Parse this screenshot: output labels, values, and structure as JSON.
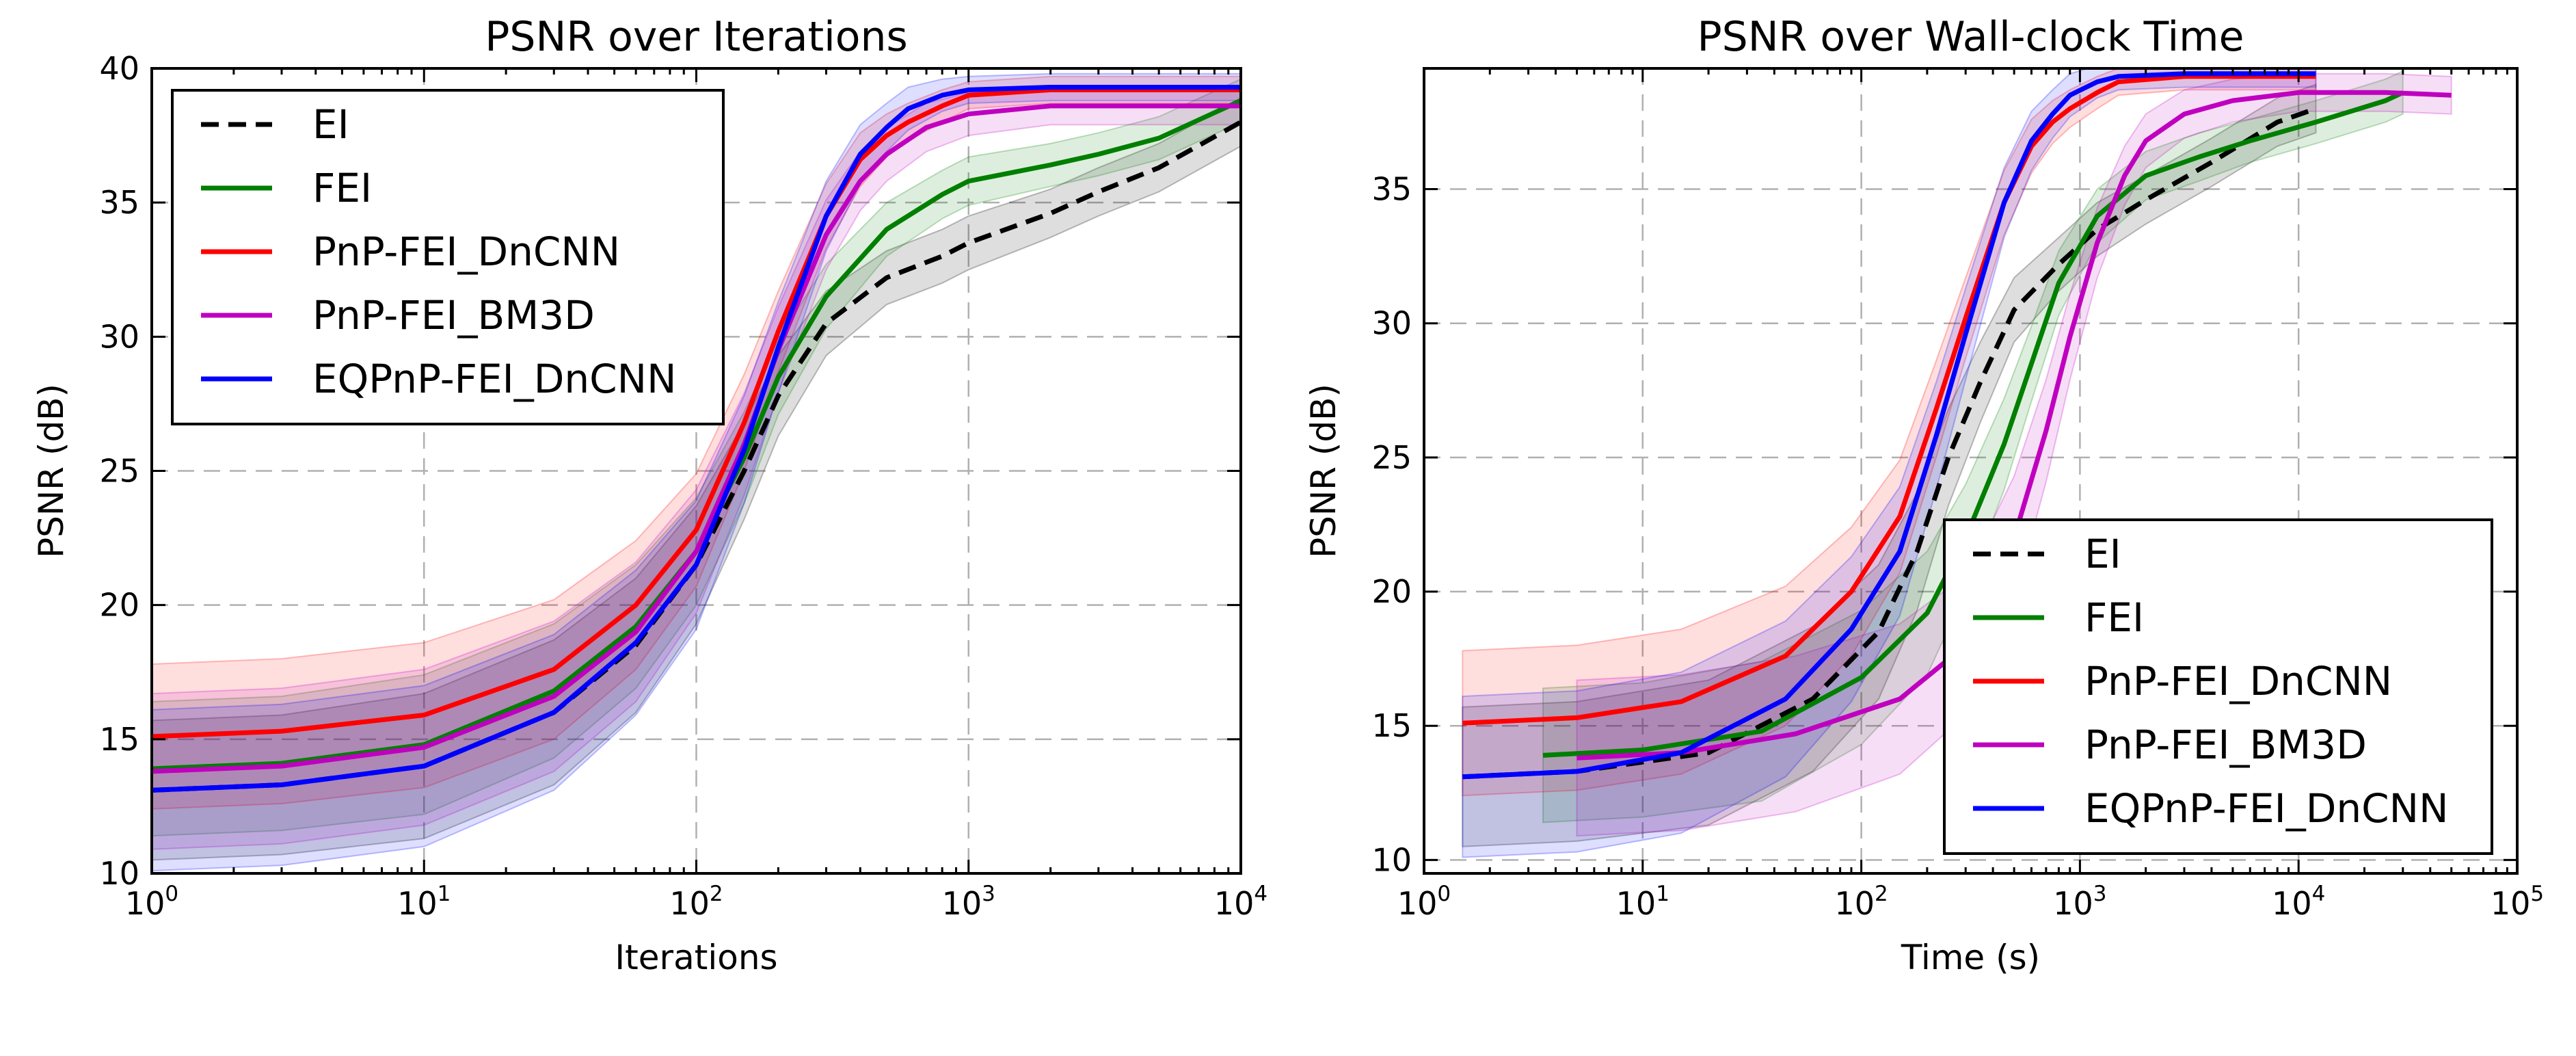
{
  "chart_data": [
    {
      "type": "line",
      "title": "PSNR over Iterations",
      "xlabel": "Iterations",
      "ylabel": "PSNR (dB)",
      "xscale": "log",
      "xlim": [
        1,
        10000
      ],
      "ylim": [
        10,
        40
      ],
      "x_ticks": [
        {
          "base": "10",
          "exp": "0",
          "value": 1
        },
        {
          "base": "10",
          "exp": "1",
          "value": 10
        },
        {
          "base": "10",
          "exp": "2",
          "value": 100
        },
        {
          "base": "10",
          "exp": "3",
          "value": 1000
        },
        {
          "base": "10",
          "exp": "4",
          "value": 10000
        }
      ],
      "y_ticks": [
        "10",
        "15",
        "20",
        "25",
        "30",
        "35",
        "40"
      ],
      "grid": true,
      "legend_position": "upper-left",
      "series": [
        {
          "name": "EI",
          "style": "dashed",
          "color": "#000000",
          "x": [
            1,
            3,
            10,
            30,
            60,
            100,
            150,
            200,
            300,
            500,
            800,
            1000,
            2000,
            3000,
            5000,
            10000
          ],
          "y": [
            13.1,
            13.3,
            14.0,
            16.0,
            18.5,
            21.5,
            25.0,
            27.8,
            30.5,
            32.2,
            33.0,
            33.5,
            34.6,
            35.4,
            36.3,
            38.0
          ],
          "band": [
            2.6,
            2.6,
            2.7,
            2.7,
            2.5,
            2.2,
            1.8,
            1.5,
            1.2,
            1.0,
            1.0,
            1.0,
            0.9,
            0.9,
            0.9,
            0.9
          ]
        },
        {
          "name": "FEI",
          "style": "solid",
          "color": "#007f00",
          "x": [
            1,
            3,
            10,
            30,
            60,
            100,
            150,
            200,
            300,
            500,
            800,
            1000,
            2000,
            3000,
            5000,
            10000
          ],
          "y": [
            13.9,
            14.1,
            14.8,
            16.8,
            19.2,
            22.0,
            25.5,
            28.5,
            31.5,
            34.0,
            35.3,
            35.8,
            36.4,
            36.8,
            37.4,
            38.8
          ],
          "band": [
            2.5,
            2.5,
            2.6,
            2.5,
            2.3,
            2.0,
            1.7,
            1.4,
            1.2,
            1.0,
            0.9,
            0.9,
            0.8,
            0.8,
            0.8,
            0.8
          ]
        },
        {
          "name": "PnP-FEI_DnCNN",
          "style": "solid",
          "color": "#ff0000",
          "x": [
            1,
            3,
            10,
            30,
            60,
            100,
            150,
            200,
            300,
            400,
            500,
            600,
            800,
            1000,
            2000,
            5000,
            10000
          ],
          "y": [
            15.1,
            15.3,
            15.9,
            17.6,
            20.0,
            22.8,
            26.8,
            30.2,
            34.5,
            36.6,
            37.5,
            38.0,
            38.6,
            39.0,
            39.2,
            39.2,
            39.2
          ],
          "band": [
            2.7,
            2.7,
            2.7,
            2.6,
            2.4,
            2.1,
            1.8,
            1.5,
            1.2,
            1.0,
            0.8,
            0.7,
            0.6,
            0.5,
            0.5,
            0.5,
            0.5
          ]
        },
        {
          "name": "PnP-FEI_BM3D",
          "style": "solid",
          "color": "#bf00bf",
          "x": [
            1,
            3,
            10,
            30,
            60,
            100,
            150,
            200,
            300,
            400,
            500,
            700,
            1000,
            2000,
            5000,
            10000
          ],
          "y": [
            13.8,
            14.0,
            14.7,
            16.6,
            19.0,
            22.0,
            26.0,
            29.5,
            33.8,
            35.8,
            36.8,
            37.8,
            38.3,
            38.6,
            38.6,
            38.6
          ],
          "band": [
            2.9,
            2.9,
            2.9,
            2.8,
            2.6,
            2.3,
            1.9,
            1.6,
            1.3,
            1.1,
            1.0,
            0.9,
            0.8,
            0.7,
            0.7,
            0.7
          ]
        },
        {
          "name": "EQPnP-FEI_DnCNN",
          "style": "solid",
          "color": "#0000ff",
          "x": [
            1,
            3,
            10,
            30,
            60,
            100,
            150,
            200,
            300,
            400,
            500,
            600,
            800,
            1000,
            2000,
            5000,
            10000
          ],
          "y": [
            13.1,
            13.3,
            14.0,
            16.0,
            18.6,
            21.5,
            25.8,
            29.6,
            34.5,
            36.8,
            37.8,
            38.5,
            39.0,
            39.2,
            39.3,
            39.3,
            39.3
          ],
          "band": [
            3.0,
            3.0,
            3.0,
            2.9,
            2.7,
            2.4,
            2.0,
            1.7,
            1.3,
            1.1,
            0.9,
            0.8,
            0.6,
            0.5,
            0.5,
            0.5,
            0.5
          ]
        }
      ]
    },
    {
      "type": "line",
      "title": "PSNR over Wall-clock Time",
      "xlabel": "Time (s)",
      "ylabel": "PSNR (dB)",
      "xscale": "log",
      "xlim": [
        1,
        100000
      ],
      "ylim": [
        9.5,
        39.5
      ],
      "x_ticks": [
        {
          "base": "10",
          "exp": "0",
          "value": 1
        },
        {
          "base": "10",
          "exp": "1",
          "value": 10
        },
        {
          "base": "10",
          "exp": "2",
          "value": 100
        },
        {
          "base": "10",
          "exp": "3",
          "value": 1000
        },
        {
          "base": "10",
          "exp": "4",
          "value": 10000
        },
        {
          "base": "10",
          "exp": "5",
          "value": 100000
        }
      ],
      "y_ticks": [
        "10",
        "15",
        "20",
        "25",
        "30",
        "35"
      ],
      "grid": true,
      "legend_position": "lower-right",
      "series": [
        {
          "name": "EI",
          "style": "dashed",
          "color": "#000000",
          "x": [
            1.5,
            5,
            20,
            60,
            120,
            180,
            250,
            350,
            500,
            800,
            1200,
            2000,
            4000,
            8000,
            12000
          ],
          "y": [
            13.1,
            13.3,
            14.0,
            16.0,
            18.5,
            21.5,
            25.0,
            27.8,
            30.5,
            32.2,
            33.5,
            34.6,
            36.0,
            37.5,
            38.0
          ],
          "band": [
            2.6,
            2.6,
            2.7,
            2.7,
            2.5,
            2.2,
            1.8,
            1.5,
            1.2,
            1.0,
            1.0,
            0.9,
            0.9,
            0.9,
            0.9
          ]
        },
        {
          "name": "FEI",
          "style": "solid",
          "color": "#007f00",
          "x": [
            3.5,
            10,
            35,
            100,
            200,
            300,
            450,
            600,
            800,
            1200,
            2000,
            3500,
            6000,
            12000,
            25000,
            30000
          ],
          "y": [
            13.9,
            14.1,
            14.8,
            16.8,
            19.2,
            22.0,
            25.5,
            28.5,
            31.5,
            34.0,
            35.5,
            36.2,
            36.8,
            37.5,
            38.3,
            38.6
          ],
          "band": [
            2.5,
            2.5,
            2.6,
            2.5,
            2.3,
            2.0,
            1.7,
            1.4,
            1.2,
            1.0,
            0.9,
            0.9,
            0.8,
            0.8,
            0.8,
            0.8
          ]
        },
        {
          "name": "PnP-FEI_DnCNN",
          "style": "solid",
          "color": "#ff0000",
          "x": [
            1.5,
            5,
            15,
            45,
            90,
            150,
            220,
            300,
            450,
            600,
            750,
            900,
            1200,
            1500,
            3000,
            7000,
            12000
          ],
          "y": [
            15.1,
            15.3,
            15.9,
            17.6,
            20.0,
            22.8,
            26.8,
            30.2,
            34.5,
            36.6,
            37.5,
            38.0,
            38.6,
            39.0,
            39.2,
            39.2,
            39.2
          ],
          "band": [
            2.7,
            2.7,
            2.7,
            2.6,
            2.4,
            2.1,
            1.8,
            1.5,
            1.2,
            1.0,
            0.8,
            0.7,
            0.6,
            0.5,
            0.5,
            0.5,
            0.5
          ]
        },
        {
          "name": "PnP-FEI_BM3D",
          "style": "solid",
          "color": "#bf00bf",
          "x": [
            5,
            15,
            50,
            150,
            300,
            500,
            700,
            900,
            1200,
            1600,
            2000,
            3000,
            5000,
            10000,
            25000,
            50000
          ],
          "y": [
            13.8,
            14.0,
            14.7,
            16.0,
            18.0,
            22.0,
            26.0,
            29.5,
            33.0,
            35.5,
            36.8,
            37.8,
            38.3,
            38.6,
            38.6,
            38.5
          ],
          "band": [
            2.9,
            2.9,
            2.9,
            2.8,
            2.6,
            2.3,
            1.9,
            1.6,
            1.3,
            1.1,
            1.0,
            0.9,
            0.8,
            0.7,
            0.7,
            0.7
          ]
        },
        {
          "name": "EQPnP-FEI_DnCNN",
          "style": "solid",
          "color": "#0000ff",
          "x": [
            1.5,
            5,
            15,
            45,
            90,
            150,
            220,
            300,
            450,
            600,
            750,
            900,
            1200,
            1500,
            3000,
            7000,
            12000
          ],
          "y": [
            13.1,
            13.3,
            14.0,
            16.0,
            18.6,
            21.5,
            25.8,
            29.6,
            34.5,
            36.8,
            37.8,
            38.5,
            39.0,
            39.2,
            39.3,
            39.3,
            39.3
          ],
          "band": [
            3.0,
            3.0,
            3.0,
            2.9,
            2.7,
            2.4,
            2.0,
            1.7,
            1.3,
            1.1,
            0.9,
            0.8,
            0.6,
            0.5,
            0.5,
            0.5,
            0.5
          ]
        }
      ]
    }
  ]
}
